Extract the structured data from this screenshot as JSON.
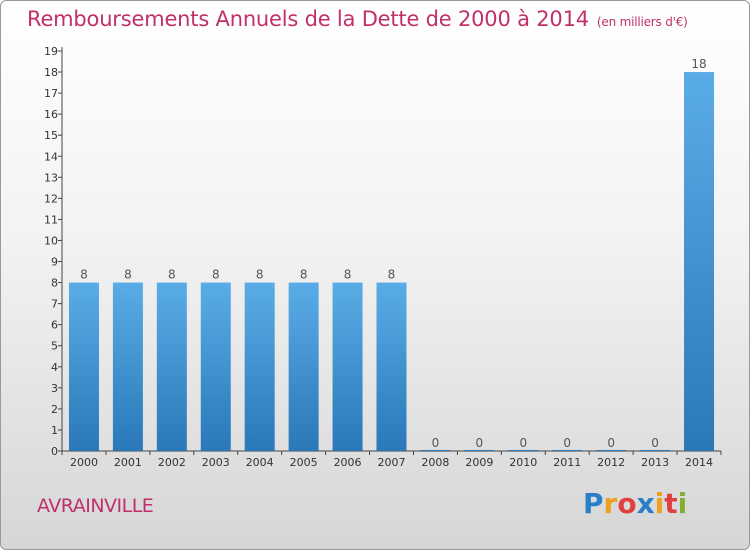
{
  "header": {
    "title": "Remboursements Annuels de la Dette de 2000 à 2014",
    "unit": "(en milliers d'€)"
  },
  "footer": {
    "city": "AVRAINVILLE",
    "logo_letters": [
      "P",
      "r",
      "o",
      "x",
      "i",
      "t",
      "i"
    ],
    "logo_colors": [
      "#2a7fc9",
      "#f0a020",
      "#e04040",
      "#2a7fc9",
      "#f0a020",
      "#e04040",
      "#80b030"
    ]
  },
  "chart_data": {
    "type": "bar",
    "title": "Remboursements Annuels de la Dette de 2000 à 2014",
    "xlabel": "",
    "ylabel": "en milliers d'€",
    "categories": [
      "2000",
      "2001",
      "2002",
      "2003",
      "2004",
      "2005",
      "2006",
      "2007",
      "2008",
      "2009",
      "2010",
      "2011",
      "2012",
      "2013",
      "2014"
    ],
    "values": [
      8,
      8,
      8,
      8,
      8,
      8,
      8,
      8,
      0,
      0,
      0,
      0,
      0,
      0,
      18
    ],
    "data_labels": [
      "8",
      "8",
      "8",
      "8",
      "8",
      "8",
      "8",
      "8",
      "0",
      "0",
      "0",
      "0",
      "0",
      "0",
      "18"
    ],
    "yticks": [
      "0",
      "1",
      "2",
      "3",
      "4",
      "5",
      "6",
      "7",
      "8",
      "9",
      "10",
      "11",
      "12",
      "13",
      "14",
      "15",
      "16",
      "17",
      "18",
      "19"
    ],
    "ylim": [
      0,
      19
    ],
    "grid": false,
    "bar_color_top": "#5aace6",
    "bar_color_bottom": "#2a78b8"
  }
}
